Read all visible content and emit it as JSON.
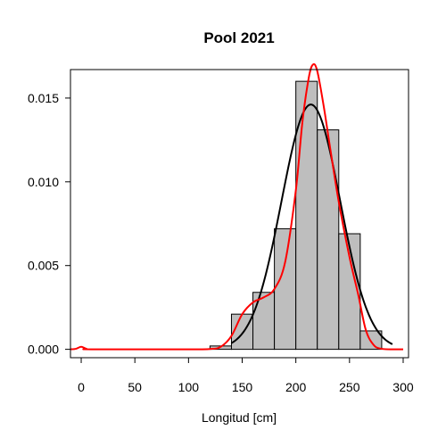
{
  "chart_data": {
    "type": "bar",
    "title": "Pool 2021",
    "xlabel": "Longitud [cm]",
    "ylabel": "",
    "xlim": [
      -10,
      305
    ],
    "ylim": [
      -0.0005,
      0.0167
    ],
    "x_ticks": [
      0,
      50,
      100,
      150,
      200,
      250,
      300
    ],
    "y_ticks": [
      0.0,
      0.005,
      0.01,
      0.015
    ],
    "y_tick_labels": [
      "0.000",
      "0.005",
      "0.010",
      "0.015"
    ],
    "grid": false,
    "legend": false,
    "histogram": {
      "bin_width": 20,
      "bins": [
        {
          "start": 120,
          "end": 140,
          "density": 0.0002
        },
        {
          "start": 140,
          "end": 160,
          "density": 0.0021
        },
        {
          "start": 160,
          "end": 180,
          "density": 0.0034
        },
        {
          "start": 180,
          "end": 200,
          "density": 0.0072
        },
        {
          "start": 200,
          "end": 220,
          "density": 0.016
        },
        {
          "start": 220,
          "end": 240,
          "density": 0.0131
        },
        {
          "start": 240,
          "end": 260,
          "density": 0.0069
        },
        {
          "start": 260,
          "end": 280,
          "density": 0.0011
        }
      ],
      "fill": "#bebebe",
      "stroke": "#000000"
    },
    "series": [
      {
        "kind": "normal-fit",
        "color": "#000000",
        "mean": 214,
        "sd": 27.3,
        "x_range": [
          140,
          290
        ]
      },
      {
        "kind": "density",
        "color": "#ff0000",
        "points": [
          [
            -10,
            0.0
          ],
          [
            -5,
            3e-05
          ],
          [
            0,
            0.00015
          ],
          [
            5,
            3e-05
          ],
          [
            10,
            0.0
          ],
          [
            100,
            0.0
          ],
          [
            120,
            2e-05
          ],
          [
            130,
            0.00015
          ],
          [
            140,
            0.0008
          ],
          [
            150,
            0.0021
          ],
          [
            160,
            0.0028
          ],
          [
            170,
            0.0031
          ],
          [
            180,
            0.0036
          ],
          [
            190,
            0.0052
          ],
          [
            200,
            0.0095
          ],
          [
            206,
            0.0135
          ],
          [
            212,
            0.0162
          ],
          [
            216,
            0.017
          ],
          [
            220,
            0.0166
          ],
          [
            226,
            0.0145
          ],
          [
            232,
            0.012
          ],
          [
            240,
            0.0088
          ],
          [
            250,
            0.0055
          ],
          [
            258,
            0.0033
          ],
          [
            265,
            0.0012
          ],
          [
            272,
            0.0003
          ],
          [
            280,
            3e-05
          ],
          [
            300,
            0.0
          ]
        ]
      }
    ]
  }
}
